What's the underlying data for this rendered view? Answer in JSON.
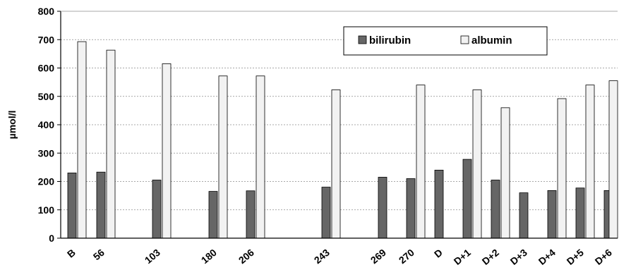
{
  "chart_data": {
    "type": "bar",
    "title": "",
    "xlabel": "",
    "ylabel": "µmol/l",
    "ylim": [
      0,
      800
    ],
    "yticks": [
      0,
      100,
      200,
      300,
      400,
      500,
      600,
      700,
      800
    ],
    "grid": "horizontal-dashed",
    "legend_position": "top-right",
    "categories": [
      "B",
      "56",
      "103",
      "180",
      "206",
      "243",
      "269",
      "270",
      "D",
      "D+1",
      "D+2",
      "D+3",
      "D+4",
      "D+5",
      "D+6"
    ],
    "series": [
      {
        "name": "bilirubin",
        "color": "#666666",
        "values": [
          230,
          233,
          205,
          165,
          167,
          180,
          215,
          210,
          240,
          278,
          205,
          160,
          168,
          177,
          168
        ]
      },
      {
        "name": "albumin",
        "color": "#f2f2f2",
        "values": [
          693,
          663,
          615,
          572,
          572,
          523,
          null,
          540,
          null,
          523,
          460,
          null,
          492,
          540,
          555
        ]
      }
    ]
  }
}
